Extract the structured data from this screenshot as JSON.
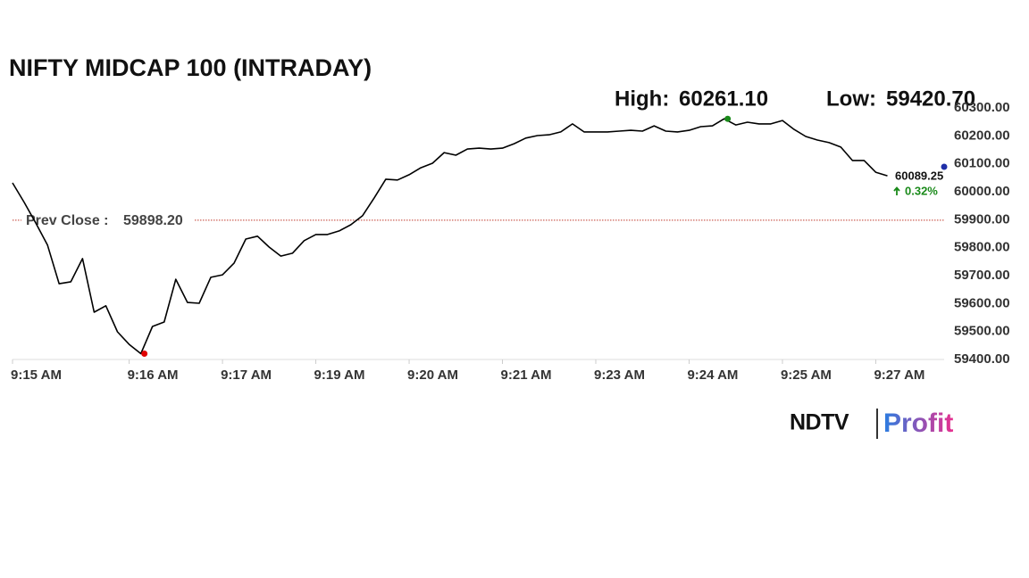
{
  "chart_data": {
    "type": "line",
    "title": "NIFTY MIDCAP 100 (INTRADAY)",
    "categories": [
      "9:15 AM",
      null,
      null,
      null,
      null,
      null,
      null,
      null,
      null,
      null,
      "9:16 AM",
      null,
      null,
      null,
      null,
      null,
      null,
      null,
      "9:17 AM",
      null,
      null,
      null,
      null,
      null,
      null,
      null,
      "9:19 AM",
      null,
      null,
      null,
      null,
      null,
      null,
      null,
      "9:20 AM",
      null,
      null,
      null,
      null,
      null,
      null,
      null,
      "9:21 AM",
      null,
      null,
      null,
      null,
      null,
      null,
      null,
      "9:23 AM",
      null,
      null,
      null,
      null,
      null,
      null,
      null,
      "9:24 AM",
      null,
      null,
      null,
      null,
      null,
      null,
      null,
      "9:25 AM",
      null,
      null,
      null,
      null,
      null,
      null,
      null,
      "9:27 AM",
      null
    ],
    "values": [
      60032,
      59962,
      59888,
      59809,
      59671,
      59678,
      59761,
      59569,
      59592,
      59499,
      59454,
      59420.7,
      59518,
      59534,
      59687,
      59604,
      59601,
      59694,
      59703,
      59745,
      59831,
      59841,
      59802,
      59770,
      59780,
      59825,
      59847,
      59847,
      59860,
      59882,
      59914,
      59978,
      60045,
      60042,
      60061,
      60086,
      60102,
      60140,
      60131,
      60153,
      60156,
      60153,
      60156,
      60172,
      60192,
      60201,
      60204,
      60214,
      60243,
      60214,
      60214,
      60214,
      60217,
      60220,
      60217,
      60236,
      60217,
      60214,
      60220,
      60233,
      60236,
      60261.1,
      60239,
      60249,
      60243,
      60243,
      60255,
      60223,
      60198,
      60185,
      60176,
      60160,
      60112,
      60112,
      60070,
      60057
    ],
    "color": "#000000",
    "ylim": [
      59400,
      60300
    ],
    "yticks": [
      {
        "value": 59400,
        "label": "59400.00"
      },
      {
        "value": 59500,
        "label": "59500.00"
      },
      {
        "value": 59600,
        "label": "59600.00"
      },
      {
        "value": 59700,
        "label": "59700.00"
      },
      {
        "value": 59800,
        "label": "59800.00"
      },
      {
        "value": 59900,
        "label": "59900.00"
      },
      {
        "value": 60000,
        "label": "60000.00"
      },
      {
        "value": 60100,
        "label": "60100.00"
      },
      {
        "value": 60200,
        "label": "60200.00"
      },
      {
        "value": 60300,
        "label": "60300.00"
      }
    ],
    "grid": false,
    "high": {
      "label": "High:",
      "value": 60261.1,
      "value_label": "60261.10",
      "color": "#1a8a1a"
    },
    "low": {
      "label": "Low:",
      "value": 59420.7,
      "value_label": "59420.70",
      "color": "#e00000"
    },
    "prev_close": {
      "label": "Prev Close :",
      "value": 59898.2,
      "value_label": "59898.20",
      "color": "#c0392b"
    },
    "last": {
      "value": 60089.25,
      "value_label": "60089.25",
      "change_label": "0.32%",
      "color": "#1f2fa8",
      "change_color": "#1a8a1a"
    },
    "logo": {
      "left": "NDTV",
      "right": "Profit"
    }
  }
}
